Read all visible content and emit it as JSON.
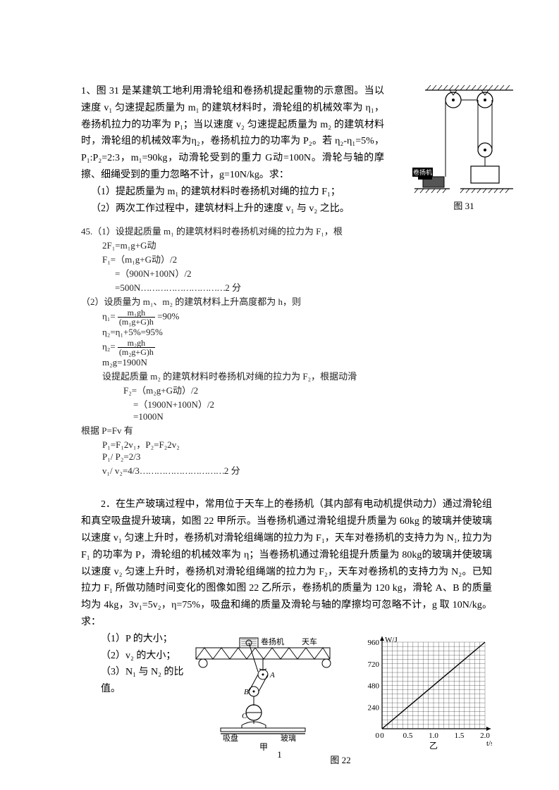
{
  "problem1": {
    "text": "1、图 31 是某建筑工地利用滑轮组和卷扬机提起重物的示意图。当以速度 v₁ 匀速提起质量为 m₁ 的建筑材料时，滑轮组的机械效率为 η₁，卷扬机拉力的功率为 P₁；当以速度 v₂ 匀速提起质量为 m₂ 的建筑材料时，滑轮组的机械效率为η₂，卷扬机拉力的功率为 P₂。若 η₂-η₁=5%，P₁:P₂=2:3，m₁=90kg，动滑轮受到的重力 G动=100N。滑轮与轴的摩擦、细绳受到的重力忽略不计，g=10N/kg。求：",
    "q1": "（1）提起质量为 m₁ 的建筑材料时卷扬机对绳的拉力 F₁；",
    "q2": "（2）两次工作过程中，建筑材料上升的速度 v₁ 与 v₂ 之比。",
    "figLabel": "图 31",
    "winchLabel": "卷扬机"
  },
  "solution45": {
    "head1": "45.（1）设提起质量 m₁ 的建筑材料时卷扬机对绳的拉力为 F₁，根",
    "l1": "2F₁=m₁g+G动",
    "l2": "F₁=（m₁g+G动）/2",
    "l3": "=（900N+100N）/2",
    "l4": "=500N",
    "score1": "2 分",
    "head2": "（2）设质量为 m₁、m₂ 的建筑材料上升高度都为 h，则",
    "eta1_lhs": "η₁=",
    "eta1_num": "m₁gh",
    "eta1_den": "(m₁g+G)h",
    "eta1_rhs": "=90%",
    "l5": "η₂=η₁+5%=95%",
    "eta2_lhs": "η₂=",
    "eta2_num": "m₂gh",
    "eta2_den": "(m₂g+G)h",
    "l7": "m₂g=1900N",
    "l8": "设提起质量 m₂ 的建筑材料时卷扬机对绳的拉力为 F₂，根据动滑",
    "l9": "F₂=（m₂g+G动）/2",
    "l10": "=（1900N+100N）/2",
    "l11": "=1000N",
    "l12": "根据 P=Fv 有",
    "l13": "P₁=F₁2v₁，P₂=F₂2v₂",
    "l14": "P₁/ P₂=2/3",
    "l15": "v₁/ v₂=4/3",
    "score2": "2 分"
  },
  "problem2": {
    "text": "2．在生产玻璃过程中，常用位于天车上的卷扬机（其内部有电动机提供动力）通过滑轮组和真空吸盘提升玻璃，如图 22 甲所示。当卷扬机通过滑轮组提升质量为 60kg 的玻璃并使玻璃以速度 v₁ 匀速上升时，卷扬机对滑轮组绳端的拉力为 F₁，天车对卷扬机的支持力为 N₁, 拉力为 F₁ 的功率为 P，滑轮组的机械效率为 η；当卷扬机通过滑轮组提升质量为 80kg的玻璃并使玻璃以速度 v₂ 匀速上升时，卷扬机对滑轮组绳端的拉力为 F₂，天车对卷扬机的支持力为 N₂。已知拉力 F₁ 所做功随时间变化的图像如图 22 乙所示，卷扬机的质量为 120 kg，滑轮 A、B 的质量均为 4kg，3v₁=5v₂，η=75%，吸盘和绳的质量及滑轮与轴的摩擦均可忽略不计，g 取 10N/kg。求：",
    "q1": "（1）P 的大小；",
    "q2": "（2）v₂ 的大小；",
    "q3": "（3）N₁ 与 N₂ 的比值。",
    "figLabel": "图 22",
    "labels": {
      "winch": "卷扬机",
      "crane": "天车",
      "sucker": "吸盘",
      "glass": "玻璃",
      "jia": "甲",
      "yi": "乙",
      "A": "A",
      "B": "B",
      "C": "C"
    }
  },
  "chart": {
    "type": "line",
    "xLabel": "t/s",
    "yLabel": "W/J",
    "xlim": [
      0,
      2.0
    ],
    "ylim": [
      0,
      960
    ],
    "xticks": [
      "0",
      "0.5",
      "1.0",
      "1.5",
      "2.0"
    ],
    "yticks": [
      "0",
      "240",
      "480",
      "720",
      "960"
    ],
    "grid_color": "#000000",
    "line_color": "#000000",
    "background_color": "#ffffff",
    "line_points": [
      [
        0,
        0
      ],
      [
        2.0,
        960
      ]
    ],
    "label_fontsize": 11,
    "line_width": 1.4,
    "grid_width": 0.5
  },
  "pageNumber": "1"
}
